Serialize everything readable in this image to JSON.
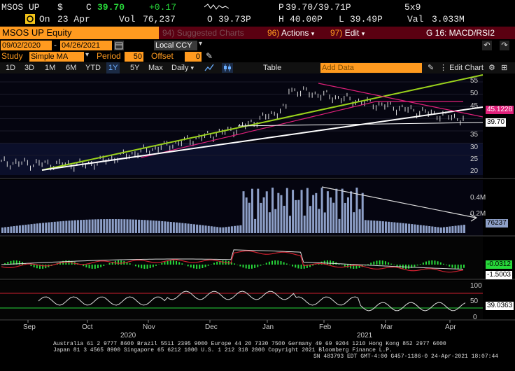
{
  "quote": {
    "ticker": "MSOS UP",
    "currency": "$",
    "last_label": "C",
    "last": "39.70",
    "change": "+0.17",
    "on_label": "On",
    "on_date": "23 Apr",
    "vol_label": "Vol",
    "volume": "76,237",
    "open_label": "O",
    "open": "39.73P",
    "pbid_label": "P",
    "bid_ask": "39.70/39.71P",
    "size": "5x9",
    "high_label": "H",
    "high": "40.00P",
    "low_label": "L",
    "low": "39.49P",
    "val_label": "Val",
    "value": "3.033M"
  },
  "titlebar": {
    "security": "MSOS UP Equity",
    "suggested_num": "94)",
    "suggested": "Suggested Charts",
    "actions_num": "96)",
    "actions": "Actions",
    "edit_num": "97)",
    "edit": "Edit",
    "graph": "G 16: MACD/RSI2"
  },
  "range": {
    "start": "09/02/2020",
    "sep": "-",
    "end": "04/26/2021",
    "currency": "Local CCY"
  },
  "study": {
    "label": "Study",
    "type": "Simple MA",
    "period_label": "Period",
    "period": "50",
    "offset_label": "Offset",
    "offset": "0"
  },
  "periods": [
    "1D",
    "3D",
    "1M",
    "6M",
    "YTD",
    "1Y",
    "5Y",
    "Max"
  ],
  "selected_period": "1Y",
  "frequency": "Daily",
  "table_label": "Table",
  "add_data_placeholder": "Add Data",
  "edit_chart": "Edit Chart",
  "price_axis": [
    "55",
    "50",
    "45",
    "40",
    "35",
    "30",
    "25",
    "20"
  ],
  "price_tags": {
    "ma": "45.1228",
    "last": "39.70"
  },
  "volume_axis": [
    "0.4M",
    "0.2M"
  ],
  "volume_tag": "76237",
  "macd_tags": {
    "macd": "-0.0312",
    "signal": "-1.5003"
  },
  "rsi_axis": [
    "100",
    "50",
    "0"
  ],
  "rsi_tag": "39.0363",
  "x_months": [
    "Sep",
    "Oct",
    "Nov",
    "Dec",
    "Jan",
    "Feb",
    "Mar",
    "Apr"
  ],
  "x_years": [
    "2020",
    "2021"
  ],
  "footer": {
    "line1": "Australia 61 2 9777 8600 Brazil 5511 2395 9000 Europe 44 20 7330 7500 Germany 49 69 9204 1210 Hong Kong 852 2977 6000",
    "line2": "Japan 81 3 4565 8900        Singapore 65 6212 1000        U.S. 1 212 318 2000             Copyright 2021 Bloomberg Finance L.P.",
    "line3": "SN 483793 EDT  GMT-4:00 G457-1186-0 24-Apr-2021 18:07:44"
  },
  "colors": {
    "orange": "#ff9a1f",
    "green": "#27d83a",
    "maroon": "#5a0011",
    "ma_pink": "#e0207a",
    "trend_green": "#9ad21b",
    "vol_bar": "#8ea0c8"
  }
}
